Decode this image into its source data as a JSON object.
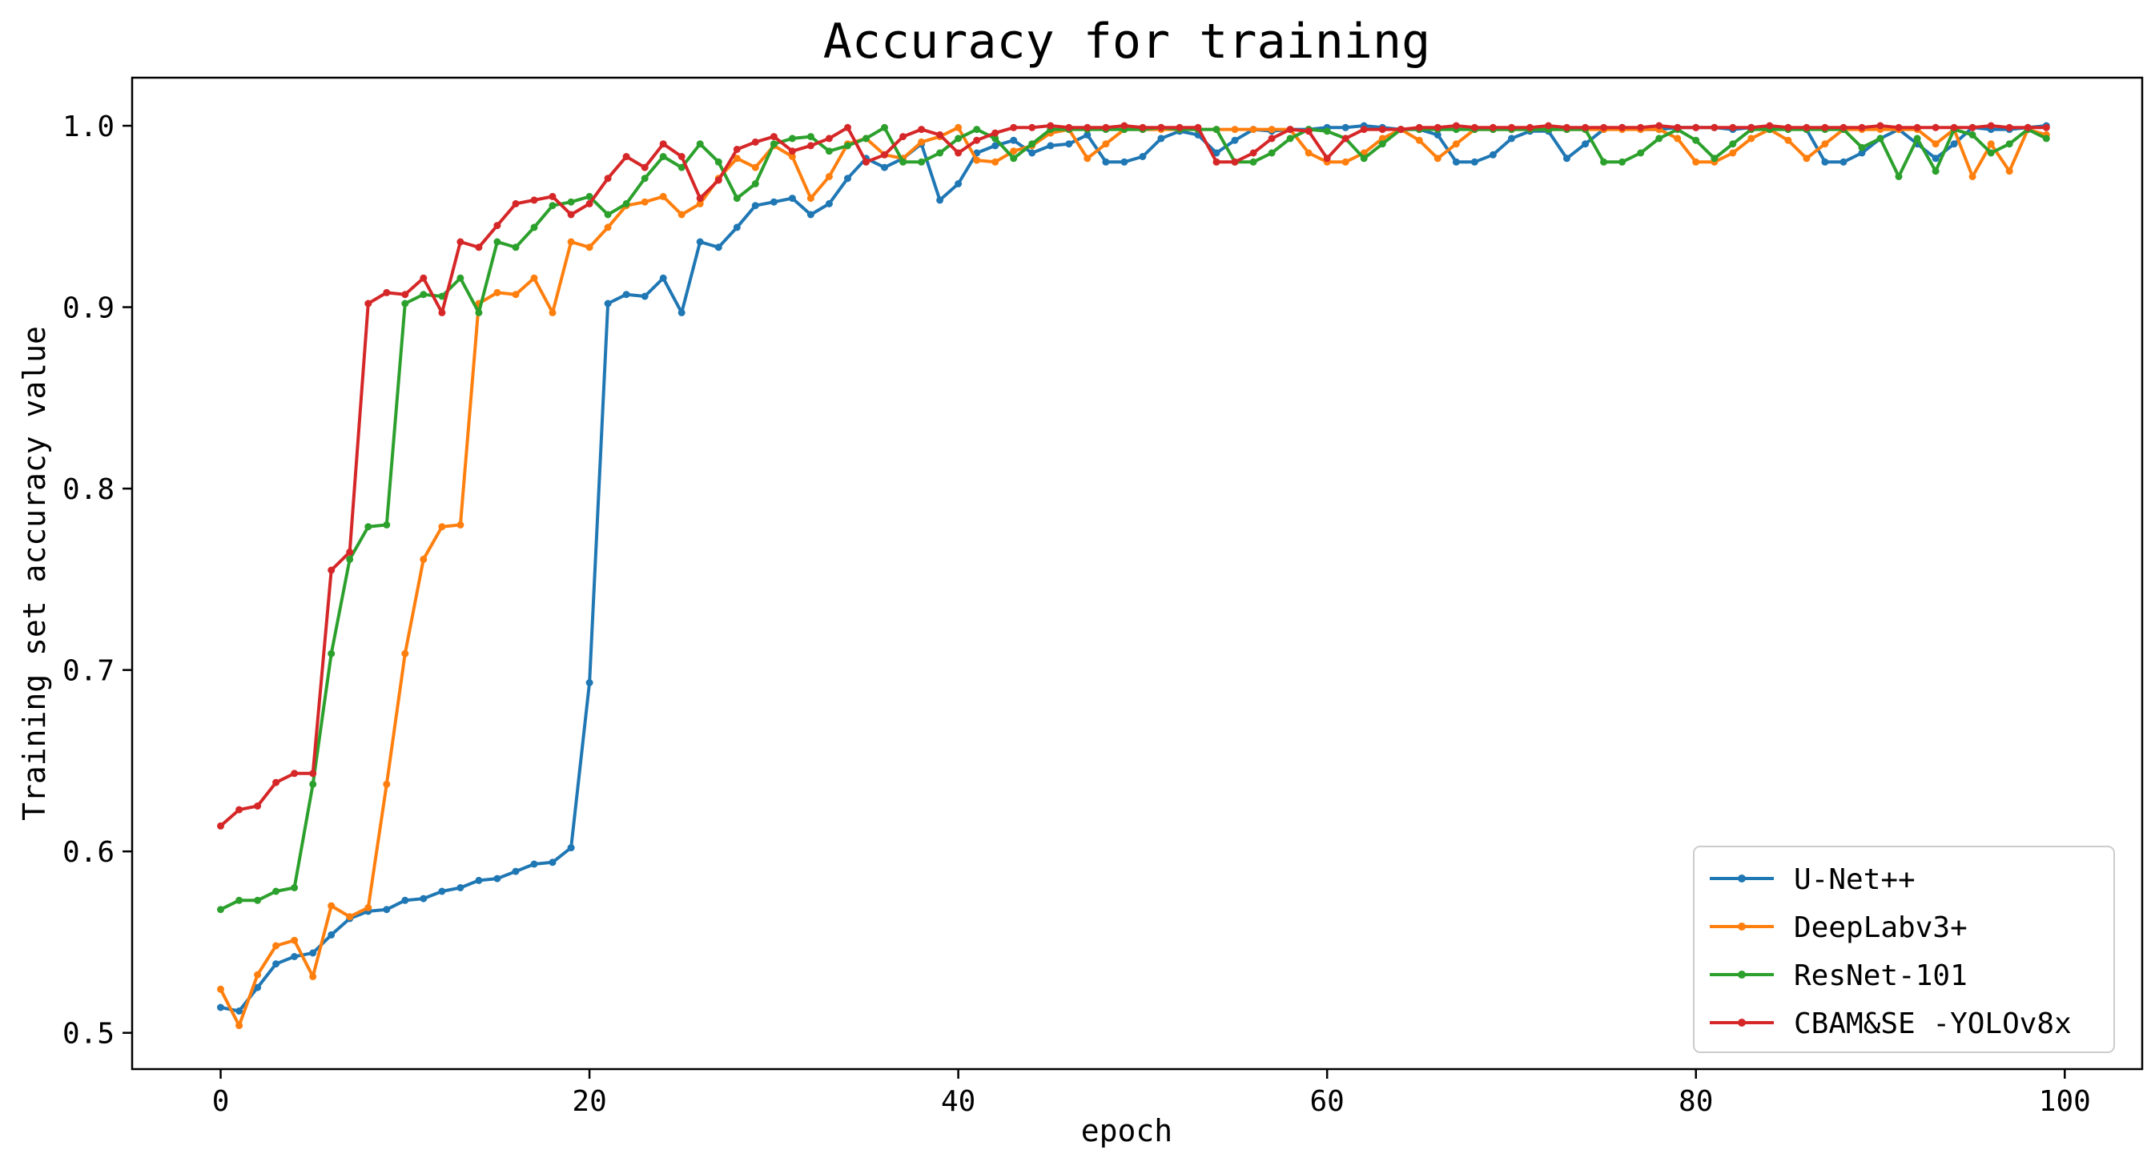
{
  "chart_data": {
    "type": "line",
    "title": "Accuracy for training",
    "xlabel": "epoch",
    "ylabel": "Training set accuracy value",
    "xlim": [
      -4.8,
      104.2
    ],
    "ylim": [
      0.48,
      1.0265
    ],
    "xticks": [
      0,
      20,
      40,
      60,
      80,
      100
    ],
    "xtick_labels": [
      "0",
      "20",
      "40",
      "60",
      "80",
      "100"
    ],
    "yticks": [
      0.5,
      0.6,
      0.7,
      0.8,
      0.9,
      1.0
    ],
    "ytick_labels": [
      "0.5",
      "0.6",
      "0.7",
      "0.8",
      "0.9",
      "1.0"
    ],
    "grid": false,
    "legend_position": "lower-right",
    "series": [
      {
        "name": "U-Net++",
        "color": "#1f77b4",
        "values": [
          0.514,
          0.512,
          0.525,
          0.538,
          0.542,
          0.544,
          0.554,
          0.563,
          0.567,
          0.568,
          0.573,
          0.574,
          0.578,
          0.58,
          0.584,
          0.585,
          0.589,
          0.593,
          0.594,
          0.602,
          0.693,
          0.902,
          0.907,
          0.906,
          0.916,
          0.897,
          0.936,
          0.933,
          0.944,
          0.956,
          0.958,
          0.96,
          0.951,
          0.957,
          0.971,
          0.982,
          0.977,
          0.982,
          0.99,
          0.959,
          0.968,
          0.985,
          0.989,
          0.992,
          0.985,
          0.989,
          0.99,
          0.995,
          0.98,
          0.98,
          0.983,
          0.993,
          0.997,
          0.995,
          0.985,
          0.992,
          0.998,
          0.997,
          0.998,
          0.998,
          0.999,
          0.999,
          1.0,
          0.999,
          0.998,
          0.998,
          0.995,
          0.98,
          0.98,
          0.984,
          0.993,
          0.997,
          0.997,
          0.982,
          0.99,
          0.998,
          0.999,
          0.998,
          0.998,
          0.999,
          0.999,
          0.999,
          0.998,
          0.999,
          0.998,
          0.999,
          0.998,
          0.98,
          0.98,
          0.985,
          0.993,
          0.998,
          0.99,
          0.982,
          0.99,
          0.999,
          0.998,
          0.998,
          0.999,
          1.0
        ]
      },
      {
        "name": "DeepLabv3+",
        "color": "#ff7f0e",
        "values": [
          0.524,
          0.504,
          0.532,
          0.548,
          0.551,
          0.531,
          0.57,
          0.564,
          0.569,
          0.637,
          0.709,
          0.761,
          0.779,
          0.78,
          0.902,
          0.908,
          0.907,
          0.916,
          0.897,
          0.936,
          0.933,
          0.944,
          0.956,
          0.958,
          0.961,
          0.951,
          0.957,
          0.971,
          0.982,
          0.977,
          0.989,
          0.983,
          0.96,
          0.972,
          0.99,
          0.993,
          0.984,
          0.982,
          0.991,
          0.994,
          0.999,
          0.981,
          0.98,
          0.986,
          0.989,
          0.996,
          0.998,
          0.982,
          0.99,
          0.998,
          0.998,
          0.998,
          0.998,
          0.998,
          0.998,
          0.998,
          0.998,
          0.998,
          0.998,
          0.985,
          0.98,
          0.98,
          0.985,
          0.993,
          0.998,
          0.992,
          0.982,
          0.99,
          0.998,
          0.998,
          0.998,
          0.998,
          0.998,
          0.998,
          0.998,
          0.998,
          0.998,
          0.998,
          0.998,
          0.993,
          0.98,
          0.98,
          0.985,
          0.993,
          0.998,
          0.992,
          0.982,
          0.99,
          0.998,
          0.998,
          0.998,
          0.998,
          0.998,
          0.99,
          0.998,
          0.972,
          0.99,
          0.975,
          0.998,
          0.995
        ]
      },
      {
        "name": "ResNet-101",
        "color": "#2ca02c",
        "values": [
          0.568,
          0.573,
          0.573,
          0.578,
          0.58,
          0.637,
          0.709,
          0.761,
          0.779,
          0.78,
          0.902,
          0.907,
          0.906,
          0.916,
          0.897,
          0.936,
          0.933,
          0.944,
          0.956,
          0.958,
          0.961,
          0.951,
          0.957,
          0.971,
          0.983,
          0.977,
          0.99,
          0.98,
          0.96,
          0.968,
          0.99,
          0.993,
          0.994,
          0.986,
          0.989,
          0.993,
          0.999,
          0.98,
          0.98,
          0.985,
          0.993,
          0.998,
          0.993,
          0.982,
          0.99,
          0.998,
          0.998,
          0.998,
          0.998,
          0.998,
          0.998,
          0.999,
          0.998,
          0.998,
          0.998,
          0.98,
          0.98,
          0.985,
          0.993,
          0.998,
          0.997,
          0.993,
          0.982,
          0.99,
          0.998,
          0.998,
          0.998,
          0.998,
          0.998,
          0.998,
          0.998,
          0.998,
          0.998,
          0.998,
          0.998,
          0.98,
          0.98,
          0.985,
          0.993,
          0.998,
          0.992,
          0.982,
          0.99,
          0.998,
          0.998,
          0.998,
          0.998,
          0.998,
          0.998,
          0.988,
          0.993,
          0.972,
          0.993,
          0.975,
          0.998,
          0.995,
          0.985,
          0.99,
          0.998,
          0.993
        ]
      },
      {
        "name": "CBAM&SE -YOLOv8x",
        "color": "#d62728",
        "values": [
          0.614,
          0.623,
          0.625,
          0.638,
          0.643,
          0.643,
          0.755,
          0.765,
          0.902,
          0.908,
          0.907,
          0.916,
          0.897,
          0.936,
          0.933,
          0.945,
          0.957,
          0.959,
          0.961,
          0.951,
          0.957,
          0.971,
          0.983,
          0.977,
          0.99,
          0.983,
          0.96,
          0.97,
          0.987,
          0.991,
          0.994,
          0.986,
          0.989,
          0.993,
          0.999,
          0.98,
          0.984,
          0.994,
          0.998,
          0.995,
          0.985,
          0.992,
          0.996,
          0.999,
          0.999,
          1.0,
          0.999,
          0.999,
          0.999,
          1.0,
          0.999,
          0.999,
          0.999,
          0.999,
          0.98,
          0.98,
          0.985,
          0.993,
          0.998,
          0.997,
          0.982,
          0.993,
          0.998,
          0.998,
          0.998,
          0.999,
          0.999,
          1.0,
          0.999,
          0.999,
          0.999,
          0.999,
          1.0,
          0.999,
          0.999,
          0.999,
          0.999,
          0.999,
          1.0,
          0.999,
          0.999,
          0.999,
          0.999,
          0.999,
          1.0,
          0.999,
          0.999,
          0.999,
          0.999,
          0.999,
          1.0,
          0.999,
          0.999,
          0.999,
          0.999,
          0.999,
          1.0,
          0.999,
          0.999,
          0.999
        ]
      }
    ]
  }
}
